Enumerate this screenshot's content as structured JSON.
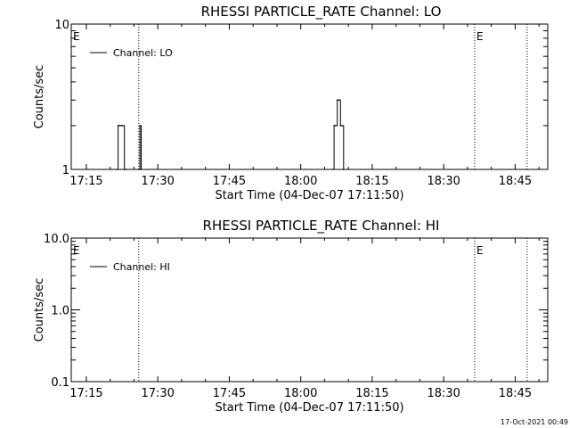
{
  "footer": {
    "timestamp": "17-Oct-2021 00:49"
  },
  "chart_data": [
    {
      "type": "line",
      "title": "RHESSI PARTICLE_RATE Channel: LO",
      "xlabel": "Start Time (04-Dec-07 17:11:50)",
      "ylabel": "Counts/sec",
      "yscale": "log",
      "ylim": [
        1,
        10
      ],
      "ytick_labels": [
        "1",
        "10"
      ],
      "xlim_minutes_after_start": [
        0,
        100
      ],
      "xtick_labels": [
        "17:15",
        "17:30",
        "17:45",
        "18:00",
        "18:15",
        "18:30",
        "18:45"
      ],
      "legend": {
        "position": "top-left",
        "entries": [
          "Channel: LO"
        ]
      },
      "markers": [
        {
          "label": "E",
          "time": "17:11:50"
        },
        {
          "label": "",
          "time": "17:26:00"
        },
        {
          "label": "E",
          "time": "18:36:30"
        },
        {
          "label": "",
          "time": "18:47:30"
        }
      ],
      "series": [
        {
          "name": "Channel: LO",
          "x": [
            "17:21:20",
            "17:21:40",
            "17:22:00",
            "17:22:20",
            "17:22:40",
            "17:23:00",
            "17:23:20",
            "17:26:00",
            "17:26:15",
            "17:26:30",
            "18:06:40",
            "18:07:00",
            "18:07:20",
            "18:07:40",
            "18:08:00",
            "18:08:20",
            "18:08:40",
            "18:09:00"
          ],
          "values": [
            1,
            2,
            2,
            2,
            2,
            1,
            1,
            1,
            2,
            1,
            1,
            2,
            2,
            3,
            3,
            2,
            2,
            1
          ]
        }
      ]
    },
    {
      "type": "line",
      "title": "RHESSI PARTICLE_RATE Channel: HI",
      "xlabel": "Start Time (04-Dec-07 17:11:50)",
      "ylabel": "Counts/sec",
      "yscale": "log",
      "ylim": [
        0.1,
        10
      ],
      "ytick_labels": [
        "0.1",
        "1.0",
        "10.0"
      ],
      "xlim_minutes_after_start": [
        0,
        100
      ],
      "xtick_labels": [
        "17:15",
        "17:30",
        "17:45",
        "18:00",
        "18:15",
        "18:30",
        "18:45"
      ],
      "legend": {
        "position": "top-left",
        "entries": [
          "Channel: HI"
        ]
      },
      "markers": [
        {
          "label": "E",
          "time": "17:11:50"
        },
        {
          "label": "",
          "time": "17:26:00"
        },
        {
          "label": "E",
          "time": "18:36:30"
        },
        {
          "label": "",
          "time": "18:47:30"
        }
      ],
      "series": [
        {
          "name": "Channel: HI",
          "x": [],
          "values": []
        }
      ]
    }
  ]
}
